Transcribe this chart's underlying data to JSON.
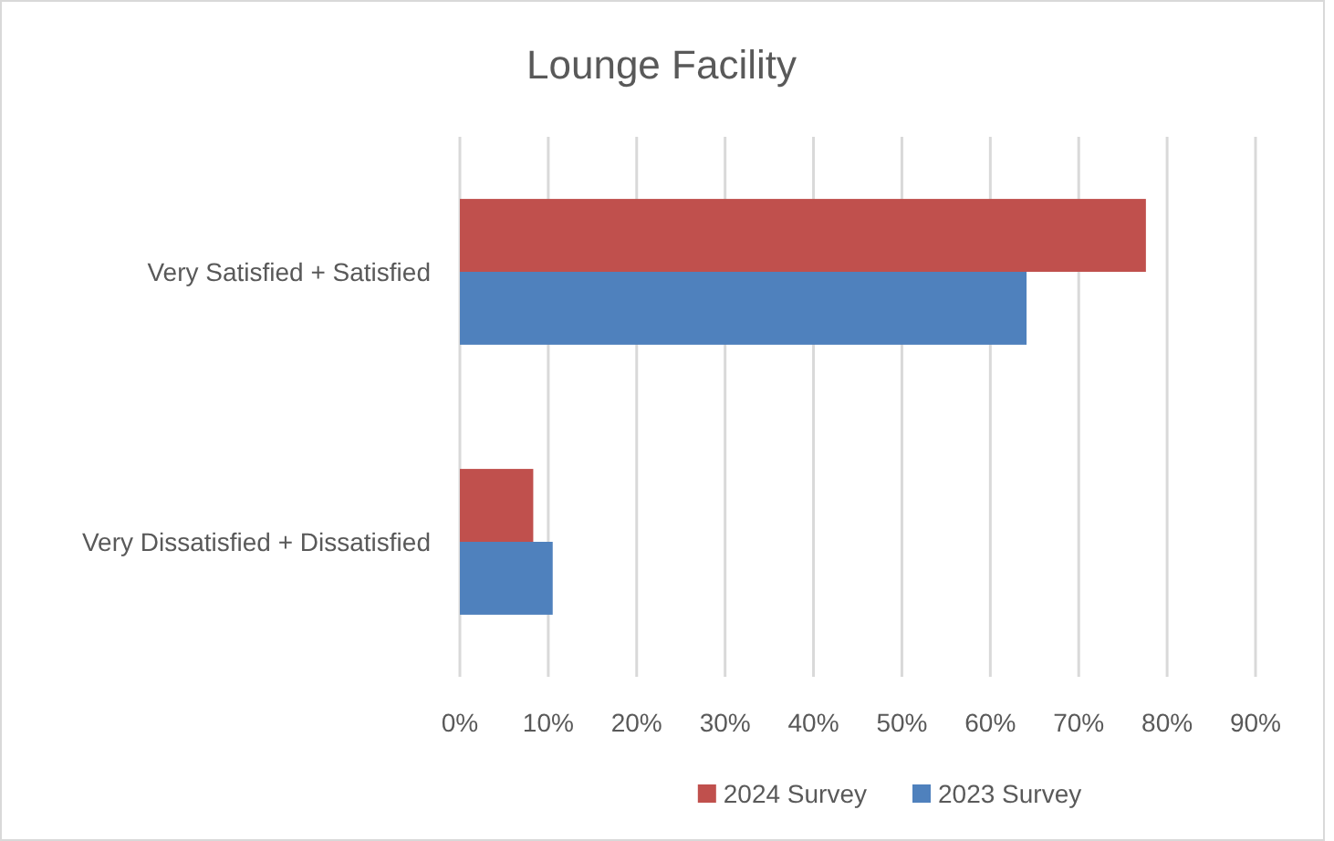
{
  "chart_data": {
    "type": "bar",
    "orientation": "horizontal",
    "title": "Lounge Facility",
    "categories": [
      "Very Satisfied + Satisfied",
      "Very Dissatisfied + Dissatisfied"
    ],
    "series": [
      {
        "name": "2024 Survey",
        "color": "#c0504d",
        "values": [
          77.6,
          8.3
        ]
      },
      {
        "name": "2023 Survey",
        "color": "#4f81bd",
        "values": [
          64.1,
          10.5
        ]
      }
    ],
    "xlim": [
      0,
      90
    ],
    "xticks": [
      {
        "value": 0,
        "label": "0%"
      },
      {
        "value": 10,
        "label": "10%"
      },
      {
        "value": 20,
        "label": "20%"
      },
      {
        "value": 30,
        "label": "30%"
      },
      {
        "value": 40,
        "label": "40%"
      },
      {
        "value": 50,
        "label": "50%"
      },
      {
        "value": 60,
        "label": "60%"
      },
      {
        "value": 70,
        "label": "70%"
      },
      {
        "value": 80,
        "label": "80%"
      },
      {
        "value": 90,
        "label": "90%"
      }
    ],
    "grid": "x",
    "legend": "bottom"
  }
}
